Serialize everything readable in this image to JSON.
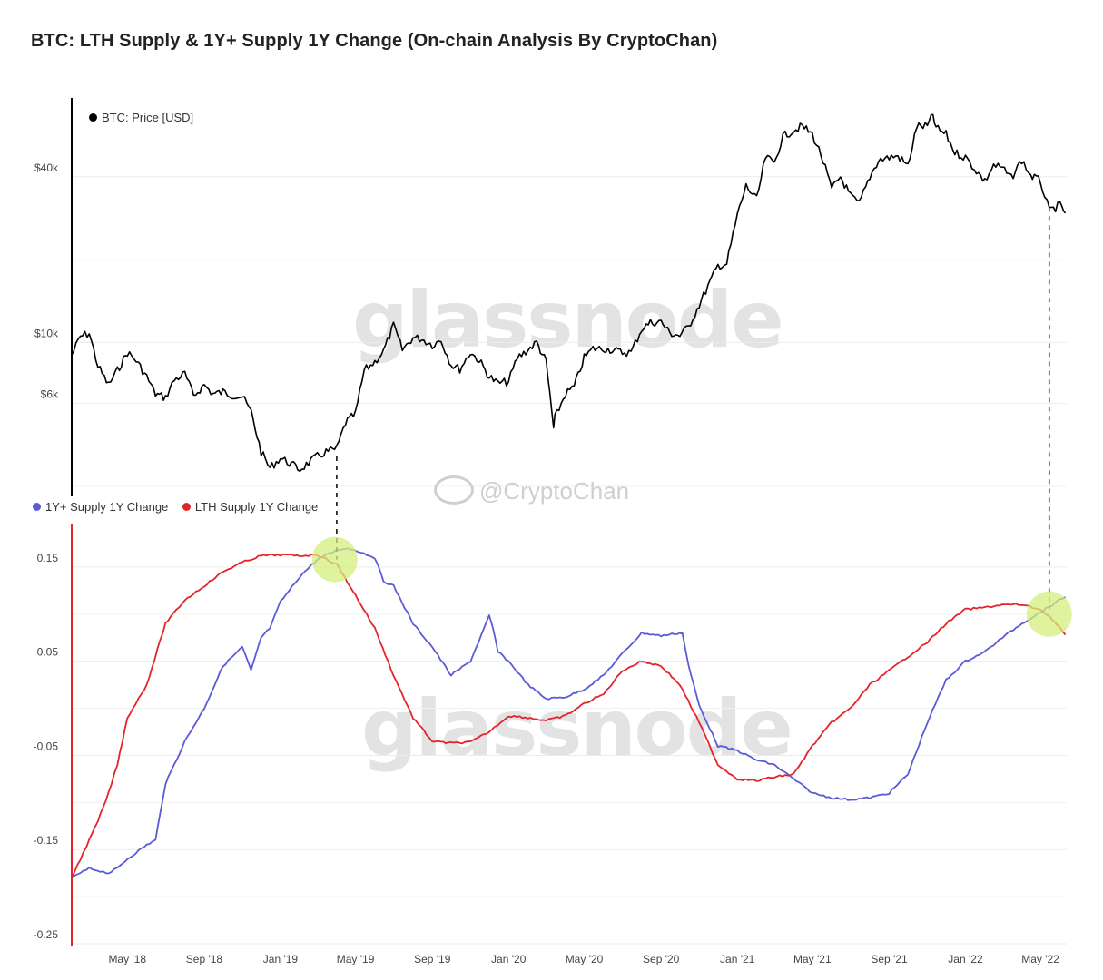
{
  "title": "BTC: LTH Supply & 1Y+ Supply 1Y Change (On-chain Analysis By CryptoChan)",
  "watermark": "glassnode",
  "credit": "@CryptoChan",
  "colors": {
    "price": "#000000",
    "one_y_plus": "#5b5bd6",
    "lth": "#e3242b",
    "highlight": "#d4ee7c",
    "grid": "#e9e9e9"
  },
  "chart_data": [
    {
      "type": "line",
      "scale": "log",
      "title": "",
      "legend": "top-left",
      "series": [
        {
          "name": "BTC: Price [USD]",
          "color": "#000000",
          "x": [
            "2018-02-01",
            "2018-02-15",
            "2018-03-01",
            "2018-03-15",
            "2018-04-01",
            "2018-04-15",
            "2018-05-01",
            "2018-05-15",
            "2018-06-01",
            "2018-06-15",
            "2018-07-01",
            "2018-07-15",
            "2018-08-01",
            "2018-08-15",
            "2018-09-01",
            "2018-09-15",
            "2018-10-01",
            "2018-10-15",
            "2018-11-01",
            "2018-11-15",
            "2018-12-01",
            "2018-12-15",
            "2019-01-01",
            "2019-01-15",
            "2019-02-01",
            "2019-02-15",
            "2019-03-01",
            "2019-03-15",
            "2019-04-01",
            "2019-04-15",
            "2019-05-01",
            "2019-05-15",
            "2019-06-01",
            "2019-06-15",
            "2019-07-01",
            "2019-07-15",
            "2019-08-01",
            "2019-08-15",
            "2019-09-01",
            "2019-09-15",
            "2019-10-01",
            "2019-10-15",
            "2019-11-01",
            "2019-11-15",
            "2019-12-01",
            "2019-12-15",
            "2020-01-01",
            "2020-01-15",
            "2020-02-01",
            "2020-02-15",
            "2020-03-01",
            "2020-03-13",
            "2020-03-15",
            "2020-04-01",
            "2020-04-15",
            "2020-05-01",
            "2020-05-15",
            "2020-06-01",
            "2020-06-15",
            "2020-07-01",
            "2020-07-15",
            "2020-08-01",
            "2020-08-15",
            "2020-09-01",
            "2020-09-15",
            "2020-10-01",
            "2020-10-15",
            "2020-11-01",
            "2020-11-15",
            "2020-12-01",
            "2020-12-15",
            "2021-01-01",
            "2021-01-15",
            "2021-02-01",
            "2021-02-15",
            "2021-03-01",
            "2021-03-15",
            "2021-04-01",
            "2021-04-15",
            "2021-05-01",
            "2021-05-15",
            "2021-06-01",
            "2021-06-15",
            "2021-07-01",
            "2021-07-15",
            "2021-08-01",
            "2021-08-15",
            "2021-09-01",
            "2021-09-15",
            "2021-10-01",
            "2021-10-15",
            "2021-11-01",
            "2021-11-10",
            "2021-11-15",
            "2021-12-01",
            "2021-12-15",
            "2022-01-01",
            "2022-01-15",
            "2022-02-01",
            "2022-02-15",
            "2022-03-01",
            "2022-03-15",
            "2022-04-01",
            "2022-04-15",
            "2022-05-01",
            "2022-05-15",
            "2022-06-01",
            "2022-06-10"
          ],
          "values": [
            9000,
            10500,
            10800,
            8200,
            7000,
            7900,
            9200,
            8600,
            7500,
            6500,
            6300,
            7300,
            7700,
            6400,
            7000,
            6500,
            6600,
            6450,
            6350,
            5600,
            4000,
            3500,
            3800,
            3650,
            3450,
            3650,
            3850,
            4000,
            4100,
            5100,
            5500,
            7900,
            8500,
            9300,
            11500,
            9400,
            10400,
            10300,
            9800,
            10200,
            8300,
            8000,
            9200,
            8600,
            7500,
            7100,
            7200,
            8800,
            9400,
            10000,
            8500,
            4900,
            5300,
            6500,
            6900,
            8800,
            9500,
            9500,
            9400,
            9200,
            9200,
            11200,
            11800,
            11900,
            10800,
            10600,
            11400,
            13700,
            16000,
            19000,
            19300,
            29000,
            37000,
            33000,
            47000,
            45000,
            56000,
            59000,
            61000,
            57000,
            48000,
            36000,
            40000,
            34000,
            31900,
            40000,
            46000,
            47000,
            47500,
            43800,
            61000,
            61000,
            67000,
            60000,
            57000,
            49000,
            47000,
            43000,
            38500,
            44000,
            43000,
            39500,
            46000,
            40500,
            38500,
            30000,
            31500,
            29500
          ],
          "ylim": [
            2800,
            75000
          ],
          "yticks": [
            "$6k",
            "$10k",
            "$40k"
          ]
        }
      ]
    },
    {
      "type": "line",
      "title": "",
      "legend": "top-left",
      "ylim": [
        -0.25,
        0.2
      ],
      "yticks": [
        "-0.25",
        "-0.15",
        "-0.05",
        "0.05",
        "0.15"
      ],
      "xticks": [
        "May '18",
        "Sep '18",
        "Jan '19",
        "May '19",
        "Sep '19",
        "Jan '20",
        "May '20",
        "Sep '20",
        "Jan '21",
        "May '21",
        "Sep '21",
        "Jan '22",
        "May '22"
      ],
      "annotations": [
        "highlight circle at 2019-04-01 (crossover)",
        "highlight circle at 2022-05-15 (crossover)"
      ],
      "series": [
        {
          "name": "1Y+ Supply 1Y Change",
          "color": "#5b5bd6",
          "x": [
            "2018-02-01",
            "2018-03-01",
            "2018-04-01",
            "2018-04-15",
            "2018-05-01",
            "2018-06-01",
            "2018-06-15",
            "2018-07-01",
            "2018-07-15",
            "2018-08-01",
            "2018-09-01",
            "2018-10-01",
            "2018-11-01",
            "2018-11-15",
            "2018-12-01",
            "2018-12-15",
            "2019-01-01",
            "2019-01-15",
            "2019-02-01",
            "2019-03-01",
            "2019-04-01",
            "2019-04-15",
            "2019-05-01",
            "2019-06-01",
            "2019-06-15",
            "2019-07-01",
            "2019-08-01",
            "2019-09-01",
            "2019-10-01",
            "2019-11-01",
            "2019-12-01",
            "2019-12-07",
            "2019-12-15",
            "2020-01-01",
            "2020-02-01",
            "2020-03-01",
            "2020-04-01",
            "2020-05-01",
            "2020-06-01",
            "2020-07-01",
            "2020-08-01",
            "2020-09-01",
            "2020-10-01",
            "2020-10-05",
            "2020-10-15",
            "2020-11-01",
            "2020-12-01",
            "2021-01-01",
            "2021-02-01",
            "2021-03-01",
            "2021-04-01",
            "2021-05-01",
            "2021-06-01",
            "2021-07-01",
            "2021-08-01",
            "2021-09-01",
            "2021-10-01",
            "2021-11-01",
            "2021-12-01",
            "2022-01-01",
            "2022-02-01",
            "2022-03-01",
            "2022-04-01",
            "2022-05-01",
            "2022-06-01",
            "2022-06-10"
          ],
          "values": [
            -0.18,
            -0.17,
            -0.175,
            -0.17,
            -0.16,
            -0.145,
            -0.14,
            -0.08,
            -0.06,
            -0.035,
            0.0,
            0.045,
            0.065,
            0.04,
            0.075,
            0.085,
            0.113,
            0.125,
            0.14,
            0.158,
            0.168,
            0.17,
            0.168,
            0.16,
            0.135,
            0.13,
            0.09,
            0.065,
            0.035,
            0.05,
            0.098,
            0.085,
            0.06,
            0.05,
            0.025,
            0.01,
            0.012,
            0.02,
            0.035,
            0.058,
            0.08,
            0.077,
            0.08,
            0.08,
            0.045,
            0.003,
            -0.04,
            -0.045,
            -0.055,
            -0.06,
            -0.075,
            -0.09,
            -0.095,
            -0.097,
            -0.095,
            -0.09,
            -0.07,
            -0.015,
            0.03,
            0.05,
            0.06,
            0.075,
            0.09,
            0.102,
            0.115,
            0.118
          ]
        },
        {
          "name": "LTH Supply 1Y Change",
          "color": "#e3242b",
          "x": [
            "2018-02-01",
            "2018-02-15",
            "2018-03-01",
            "2018-03-15",
            "2018-04-01",
            "2018-04-15",
            "2018-05-01",
            "2018-06-01",
            "2018-07-01",
            "2018-08-01",
            "2018-09-01",
            "2018-10-01",
            "2018-11-01",
            "2018-12-01",
            "2019-01-01",
            "2019-02-01",
            "2019-03-01",
            "2019-04-01",
            "2019-05-01",
            "2019-06-01",
            "2019-07-01",
            "2019-08-01",
            "2019-09-01",
            "2019-10-01",
            "2019-11-01",
            "2019-12-01",
            "2020-01-01",
            "2020-02-01",
            "2020-03-01",
            "2020-04-01",
            "2020-05-01",
            "2020-06-01",
            "2020-07-01",
            "2020-08-01",
            "2020-09-01",
            "2020-10-01",
            "2020-11-01",
            "2020-12-01",
            "2021-01-01",
            "2021-02-01",
            "2021-03-01",
            "2021-04-01",
            "2021-05-01",
            "2021-06-01",
            "2021-07-01",
            "2021-08-01",
            "2021-09-01",
            "2021-10-01",
            "2021-11-01",
            "2021-12-01",
            "2022-01-01",
            "2022-02-01",
            "2022-03-01",
            "2022-04-01",
            "2022-05-01",
            "2022-05-15",
            "2022-06-01",
            "2022-06-10"
          ],
          "values": [
            -0.18,
            -0.16,
            -0.14,
            -0.12,
            -0.09,
            -0.06,
            -0.01,
            0.025,
            0.09,
            0.115,
            0.13,
            0.145,
            0.155,
            0.162,
            0.163,
            0.162,
            0.163,
            0.153,
            0.12,
            0.085,
            0.035,
            -0.01,
            -0.035,
            -0.037,
            -0.036,
            -0.025,
            -0.008,
            -0.01,
            -0.013,
            -0.008,
            0.005,
            0.015,
            0.04,
            0.05,
            0.045,
            0.025,
            -0.015,
            -0.06,
            -0.075,
            -0.077,
            -0.073,
            -0.07,
            -0.04,
            -0.015,
            0.0,
            0.025,
            0.04,
            0.055,
            0.07,
            0.09,
            0.105,
            0.107,
            0.11,
            0.11,
            0.105,
            0.098,
            0.085,
            0.078
          ]
        }
      ]
    }
  ]
}
